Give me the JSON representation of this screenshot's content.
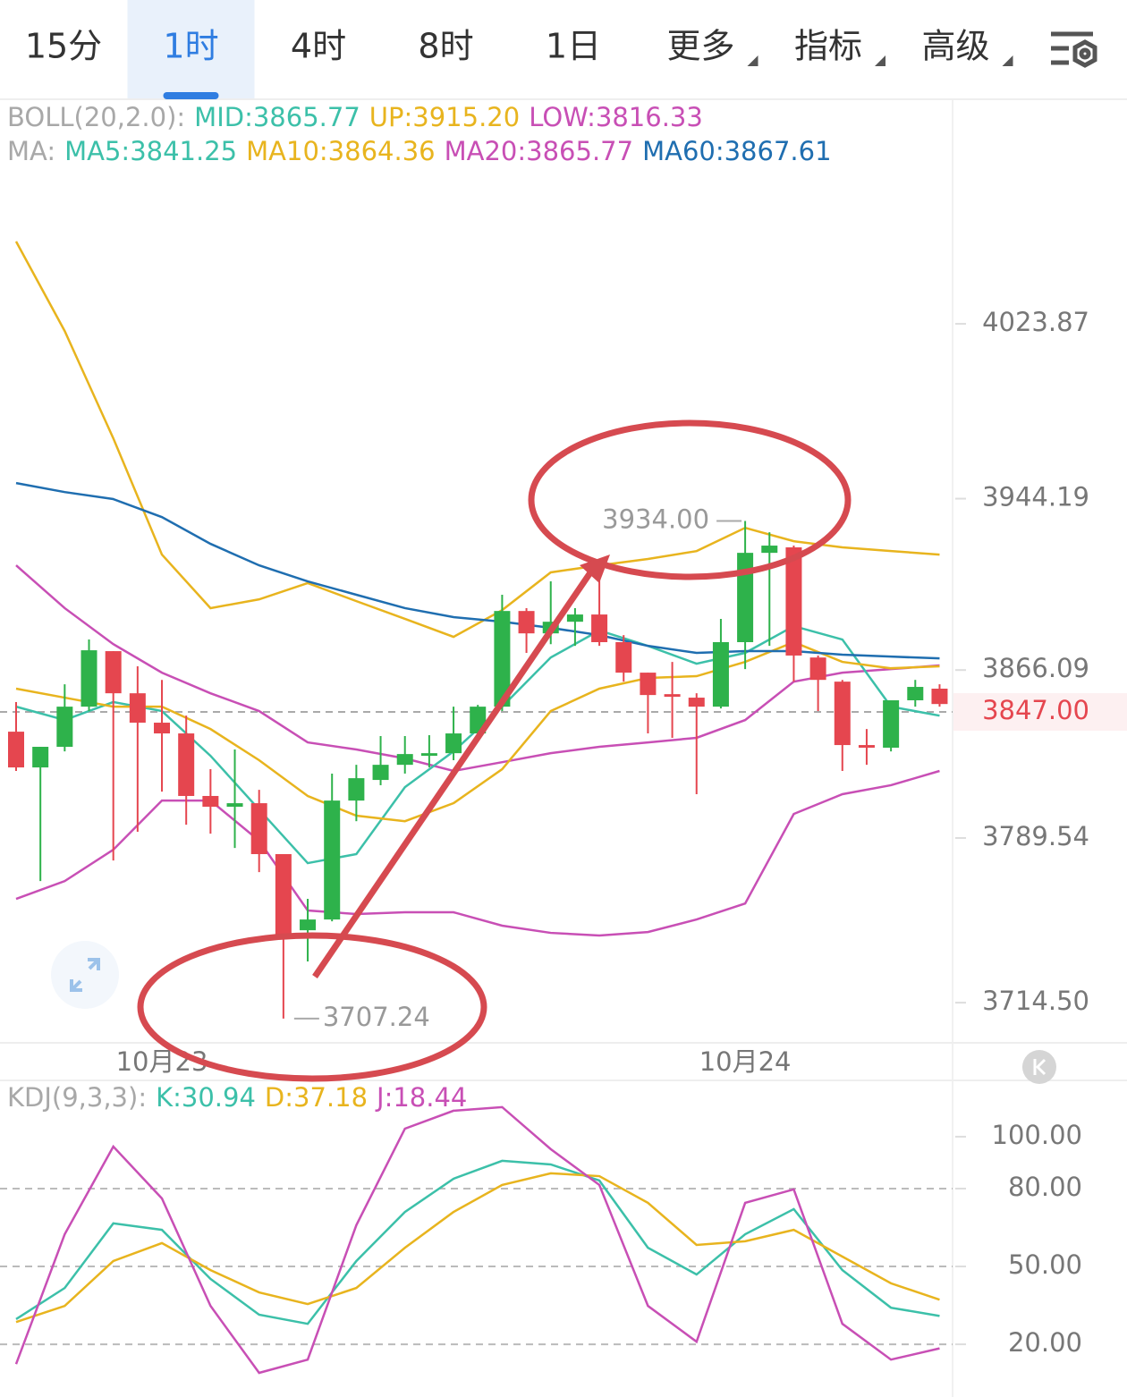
{
  "tabs": [
    {
      "label": "15分"
    },
    {
      "label": "1时",
      "selected": true
    },
    {
      "label": "4时"
    },
    {
      "label": "8时"
    },
    {
      "label": "1日"
    },
    {
      "label": "更多",
      "menu": true
    },
    {
      "label": "指标",
      "menu": true
    },
    {
      "label": "高级",
      "menu": true
    }
  ],
  "boll": [
    {
      "text": "BOLL(20,2.0):",
      "color": "#a8a8a8"
    },
    {
      "text": "MID:3865.77",
      "color": "#3cc0a9"
    },
    {
      "text": "UP:3915.20",
      "color": "#e8b41e"
    },
    {
      "text": "LOW:3816.33",
      "color": "#c84fb5"
    }
  ],
  "ma": [
    {
      "text": "MA:",
      "color": "#a8a8a8"
    },
    {
      "text": "MA5:3841.25",
      "color": "#3cc0a9"
    },
    {
      "text": "MA10:3864.36",
      "color": "#e8b41e"
    },
    {
      "text": "MA20:3865.77",
      "color": "#c84fb5"
    },
    {
      "text": "MA60:3867.61",
      "color": "#1f6eb0"
    }
  ],
  "price_chart": {
    "type": "candlestick",
    "ylim": [
      3696.6,
      4125.8
    ],
    "yticks": [
      4023.87,
      3944.19,
      3866.09,
      3789.54,
      {
        "value": 3714.5,
        "label": "3714.50"
      }
    ],
    "current": {
      "value": 3847,
      "label": "3847.00"
    },
    "up_color": "#2eb24b",
    "down_color": "#e5464f",
    "candles": [
      {
        "open": 3838.0,
        "high": 3851.5,
        "low": 3820.1,
        "close": 3821.7
      },
      {
        "open": 3821.7,
        "high": 3831.1,
        "low": 3769.9,
        "close": 3831.1
      },
      {
        "open": 3831.1,
        "high": 3859.6,
        "low": 3829.0,
        "close": 3849.4
      },
      {
        "open": 3849.4,
        "high": 3880.0,
        "low": 3847.4,
        "close": 3875.1
      },
      {
        "open": 3874.7,
        "high": 3874.7,
        "low": 3779.3,
        "close": 3855.5
      },
      {
        "open": 3855.5,
        "high": 3867.8,
        "low": 3792.4,
        "close": 3842.1
      },
      {
        "open": 3842.1,
        "high": 3861.6,
        "low": 3810.7,
        "close": 3837.2
      },
      {
        "open": 3837.2,
        "high": 3845.3,
        "low": 3795.6,
        "close": 3808.7
      },
      {
        "open": 3808.7,
        "high": 3820.9,
        "low": 3791.5,
        "close": 3803.8
      },
      {
        "open": 3803.8,
        "high": 3829.9,
        "low": 3785.0,
        "close": 3805.4
      },
      {
        "open": 3805.4,
        "high": 3811.5,
        "low": 3774.0,
        "close": 3782.2
      },
      {
        "open": 3782.2,
        "high": 3782.2,
        "low": 3707.24,
        "close": 3745.5
      },
      {
        "open": 3747.5,
        "high": 3761.8,
        "low": 3733.3,
        "close": 3752.4
      },
      {
        "open": 3752.4,
        "high": 3818.9,
        "low": 3751.6,
        "close": 3806.6
      },
      {
        "open": 3806.6,
        "high": 3822.9,
        "low": 3797.2,
        "close": 3816.8
      },
      {
        "open": 3816.0,
        "high": 3836.0,
        "low": 3813.6,
        "close": 3822.9
      },
      {
        "open": 3822.9,
        "high": 3836.0,
        "low": 3818.9,
        "close": 3827.8
      },
      {
        "open": 3827.0,
        "high": 3836.4,
        "low": 3821.7,
        "close": 3828.2
      },
      {
        "open": 3828.2,
        "high": 3849.4,
        "low": 3825.0,
        "close": 3837.2
      },
      {
        "open": 3837.2,
        "high": 3850.2,
        "low": 3836.4,
        "close": 3849.4
      },
      {
        "open": 3849.4,
        "high": 3900.4,
        "low": 3847.4,
        "close": 3893.0
      },
      {
        "open": 3893.0,
        "high": 3894.3,
        "low": 3873.9,
        "close": 3882.8
      },
      {
        "open": 3882.8,
        "high": 3906.5,
        "low": 3877.9,
        "close": 3888.1
      },
      {
        "open": 3888.1,
        "high": 3894.3,
        "low": 3877.1,
        "close": 3891.4
      },
      {
        "open": 3891.4,
        "high": 3910.6,
        "low": 3877.1,
        "close": 3878.8
      },
      {
        "open": 3878.8,
        "high": 3882.0,
        "low": 3860.8,
        "close": 3864.9
      },
      {
        "open": 3864.9,
        "high": 3864.9,
        "low": 3837.2,
        "close": 3854.7
      },
      {
        "open": 3855.1,
        "high": 3869.8,
        "low": 3835.2,
        "close": 3853.9
      },
      {
        "open": 3853.5,
        "high": 3855.5,
        "low": 3809.5,
        "close": 3849.4
      },
      {
        "open": 3849.4,
        "high": 3889.4,
        "low": 3848.6,
        "close": 3878.8
      },
      {
        "open": 3878.8,
        "high": 3934.0,
        "low": 3866.5,
        "close": 3919.5
      },
      {
        "open": 3919.5,
        "high": 3928.9,
        "low": 3877.1,
        "close": 3922.8
      },
      {
        "open": 3922.0,
        "high": 3922.8,
        "low": 3860.8,
        "close": 3872.7
      },
      {
        "open": 3871.8,
        "high": 3872.7,
        "low": 3847.4,
        "close": 3861.6
      },
      {
        "open": 3860.8,
        "high": 3861.6,
        "low": 3820.1,
        "close": 3831.9
      },
      {
        "open": 3831.9,
        "high": 3839.2,
        "low": 3822.9,
        "close": 3830.7
      },
      {
        "open": 3830.7,
        "high": 3852.3,
        "low": 3829.0,
        "close": 3852.3
      },
      {
        "open": 3852.3,
        "high": 3861.6,
        "low": 3849.4,
        "close": 3858.4
      },
      {
        "open": 3857.6,
        "high": 3859.6,
        "low": 3849.4,
        "close": 3850.6
      }
    ],
    "line_x": [
      0,
      2,
      4,
      6,
      8,
      10,
      12,
      14,
      16,
      18,
      20,
      22,
      24,
      26,
      28,
      30,
      32,
      34,
      36,
      38
    ],
    "lines": [
      {
        "name": "UP",
        "color": "#e8b41e",
        "values": [
          4061.4,
          4020.6,
          3971.7,
          3918.7,
          3894.3,
          3898.3,
          3905.7,
          3897.5,
          3889.4,
          3881.2,
          3893.4,
          3910.6,
          3913.8,
          3916.7,
          3920.3,
          3930.9,
          3924.8,
          3922.0,
          3920.3,
          3918.7
        ]
      },
      {
        "name": "MID",
        "color": "#c84fb5",
        "values": [
          3913.8,
          3894.3,
          3877.9,
          3864.9,
          3855.5,
          3847.4,
          3833.1,
          3829.9,
          3825.8,
          3820.1,
          3824.1,
          3828.2,
          3831.1,
          3833.1,
          3835.2,
          3843.3,
          3860.8,
          3864.9,
          3866.5,
          3868.2
        ]
      },
      {
        "name": "LOW",
        "color": "#c84fb5",
        "values": [
          3761.8,
          3769.9,
          3784.2,
          3806.6,
          3806.6,
          3788.3,
          3756.5,
          3754.9,
          3755.7,
          3755.7,
          3749.6,
          3746.3,
          3745.1,
          3746.7,
          3752.4,
          3759.7,
          3800.5,
          3809.5,
          3813.6,
          3820.1
        ]
      },
      {
        "name": "MA5",
        "color": "#3cc0a9",
        "values": [
          3849.4,
          3843.3,
          3851.5,
          3847.4,
          3827.0,
          3802.5,
          3778.1,
          3782.2,
          3812.7,
          3829.0,
          3849.4,
          3871.8,
          3884.1,
          3877.1,
          3869.0,
          3873.9,
          3886.1,
          3880.0,
          3849.4,
          3845.3
        ]
      },
      {
        "name": "MA10",
        "color": "#e8b41e",
        "values": [
          3857.6,
          3853.5,
          3849.4,
          3849.4,
          3839.2,
          3825.0,
          3808.7,
          3799.7,
          3797.2,
          3805.4,
          3820.9,
          3847.4,
          3857.6,
          3862.5,
          3863.3,
          3869.8,
          3878.8,
          3869.8,
          3866.9,
          3867.8
        ]
      },
      {
        "name": "MA60",
        "color": "#1f6eb0",
        "values": [
          3951.3,
          3947.2,
          3944.0,
          3935.8,
          3923.6,
          3913.8,
          3906.5,
          3900.4,
          3894.3,
          3890.2,
          3888.1,
          3885.3,
          3882.0,
          3877.1,
          3873.9,
          3874.7,
          3874.7,
          3873.1,
          3872.2,
          3871.4
        ]
      }
    ],
    "annotations": [
      {
        "candle": 30,
        "field": "high",
        "label": "3934.00"
      },
      {
        "candle": 11,
        "field": "low",
        "label": "3707.24"
      }
    ],
    "xlabels": [
      {
        "index": 6,
        "label": "10月23"
      },
      {
        "index": 30,
        "label": "10月24"
      }
    ]
  },
  "kdj": {
    "header": [
      {
        "text": "KDJ(9,3,3):",
        "color": "#a8a8a8"
      },
      {
        "text": "K:30.94",
        "color": "#3cc0a9"
      },
      {
        "text": "D:37.18",
        "color": "#e8b41e"
      },
      {
        "text": "J:18.44",
        "color": "#c84fb5"
      }
    ],
    "ylim": [
      -0.3,
      121
    ],
    "yticks": [
      {
        "value": 100,
        "label": "100.00"
      },
      {
        "value": 80,
        "label": "80.00"
      },
      {
        "value": 50,
        "label": "50.00"
      },
      {
        "value": 20,
        "label": "20.00"
      }
    ],
    "grid": [
      80,
      50,
      20
    ],
    "series": [
      {
        "name": "K",
        "color": "#3cc0a9",
        "values": [
          29.7,
          41.7,
          66.6,
          64.1,
          45.2,
          31.4,
          27.9,
          52.1,
          71.0,
          83.8,
          90.7,
          89.3,
          83.1,
          57.2,
          46.9,
          62.4,
          72.1,
          48.6,
          34.1,
          30.94
        ]
      },
      {
        "name": "D",
        "color": "#e8b41e",
        "values": [
          28.6,
          34.8,
          52.1,
          59.0,
          48.6,
          40.0,
          35.5,
          41.7,
          57.2,
          71.0,
          81.4,
          85.9,
          84.8,
          74.5,
          58.3,
          59.7,
          64.1,
          53.8,
          43.5,
          37.18
        ]
      },
      {
        "name": "J",
        "color": "#c84fb5",
        "values": [
          12.4,
          62.4,
          96.2,
          76.2,
          34.8,
          9.0,
          14.1,
          65.9,
          103.1,
          110.0,
          111.4,
          95.2,
          81.4,
          34.8,
          21.0,
          74.5,
          79.7,
          27.9,
          14.1,
          18.44
        ]
      }
    ]
  }
}
